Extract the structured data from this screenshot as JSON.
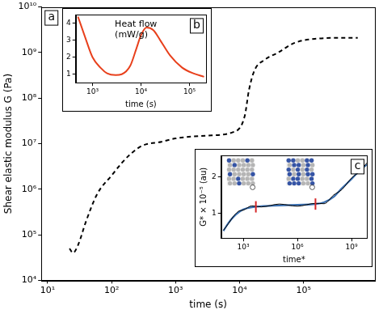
{
  "chart_data": [
    {
      "type": "line",
      "panel_label": "a",
      "x_label": "time (s)",
      "y_label": "Shear elastic modulus G (Pa)",
      "log": true,
      "grid": false,
      "x": [
        22,
        25,
        30,
        40,
        60,
        100,
        150,
        200,
        300,
        600,
        1000,
        3000,
        8000,
        12000,
        14000,
        17000,
        25000,
        40000,
        70000,
        150000,
        400000,
        700000
      ],
      "series": [
        {
          "color": "#000000",
          "line_style": "dashed",
          "values": [
            50000,
            40000,
            60000,
            200000,
            800000,
            2000000,
            4000000,
            6000000,
            9000000,
            11000000,
            13000000,
            15000000,
            18000000,
            40000000,
            150000000,
            400000000,
            700000000,
            1000000000,
            1600000000,
            2000000000,
            2100000000,
            2100000000
          ]
        }
      ],
      "xlim": [
        8,
        1300000
      ],
      "xticks": [
        {
          "value": 10,
          "label": "10¹"
        },
        {
          "value": 100,
          "label": "10²"
        },
        {
          "value": 1000,
          "label": "10³"
        },
        {
          "value": 10000,
          "label": "10⁴"
        },
        {
          "value": 100000,
          "label": "10⁵"
        }
      ],
      "ylim": [
        10000,
        10000000000
      ],
      "yticks": [
        {
          "value": 10000,
          "label": "10⁴"
        },
        {
          "value": 100000,
          "label": "10⁵"
        },
        {
          "value": 1000000,
          "label": "10⁶"
        },
        {
          "value": 10000000,
          "label": "10⁷"
        },
        {
          "value": 100000000,
          "label": "10⁸"
        },
        {
          "value": 1000000000,
          "label": "10⁹"
        },
        {
          "value": 10000000000,
          "label": "10¹⁰"
        }
      ]
    },
    {
      "type": "line",
      "panel_label": "b",
      "x_label": "time (s)",
      "annotation": [
        "Heat flow",
        "(mW/g)"
      ],
      "log": "x",
      "grid": false,
      "x": [
        500,
        700,
        1000,
        1500,
        2000,
        3000,
        4000,
        6000,
        8000,
        10000,
        13000,
        18000,
        25000,
        40000,
        70000,
        120000,
        200000
      ],
      "series": [
        {
          "color": "#e8401c",
          "line_style": "solid",
          "values": [
            4.4,
            3.2,
            2.0,
            1.35,
            1.05,
            0.95,
            1.0,
            1.5,
            2.5,
            3.3,
            3.75,
            3.6,
            3.0,
            2.1,
            1.4,
            1.05,
            0.85
          ]
        }
      ],
      "xlim": [
        450,
        220000
      ],
      "xticks": [
        {
          "value": 1000,
          "label": "10³"
        },
        {
          "value": 10000,
          "label": "10⁴"
        },
        {
          "value": 100000,
          "label": "10⁵"
        }
      ],
      "ylim": [
        0.5,
        4.5
      ],
      "yticks": [
        1,
        2,
        3,
        4
      ]
    },
    {
      "type": "line",
      "panel_label": "c",
      "x_label": "time*",
      "y_label": "G* × 10⁻⁵ (au)",
      "log": "x",
      "grid": false,
      "x": [
        80,
        150,
        300,
        600,
        1000,
        3000,
        10000,
        100000,
        1000000,
        10000000,
        30000000,
        100000000,
        300000000,
        1000000000,
        3000000000,
        7000000000
      ],
      "series": [
        {
          "color": "#000000",
          "line_style": "solid",
          "values": [
            0.52,
            0.7,
            0.92,
            1.06,
            1.08,
            1.2,
            1.17,
            1.25,
            1.19,
            1.27,
            1.26,
            1.5,
            1.66,
            1.98,
            2.17,
            2.4
          ]
        },
        {
          "color": "#3a6fb0",
          "line_style": "solid",
          "values": [
            0.5,
            0.72,
            0.9,
            1.03,
            1.1,
            1.16,
            1.19,
            1.21,
            1.23,
            1.25,
            1.3,
            1.45,
            1.7,
            1.95,
            2.2,
            2.35
          ]
        }
      ],
      "highlights": [
        5000,
        10000000
      ],
      "xlim": [
        60,
        7000000000
      ],
      "xticks": [
        {
          "value": 1000,
          "label": "10³"
        },
        {
          "value": 1000000,
          "label": "10⁶"
        },
        {
          "value": 1000000000,
          "label": "10⁹"
        }
      ],
      "ylim": [
        0.3,
        2.6
      ],
      "yticks": [
        1,
        2
      ]
    }
  ]
}
